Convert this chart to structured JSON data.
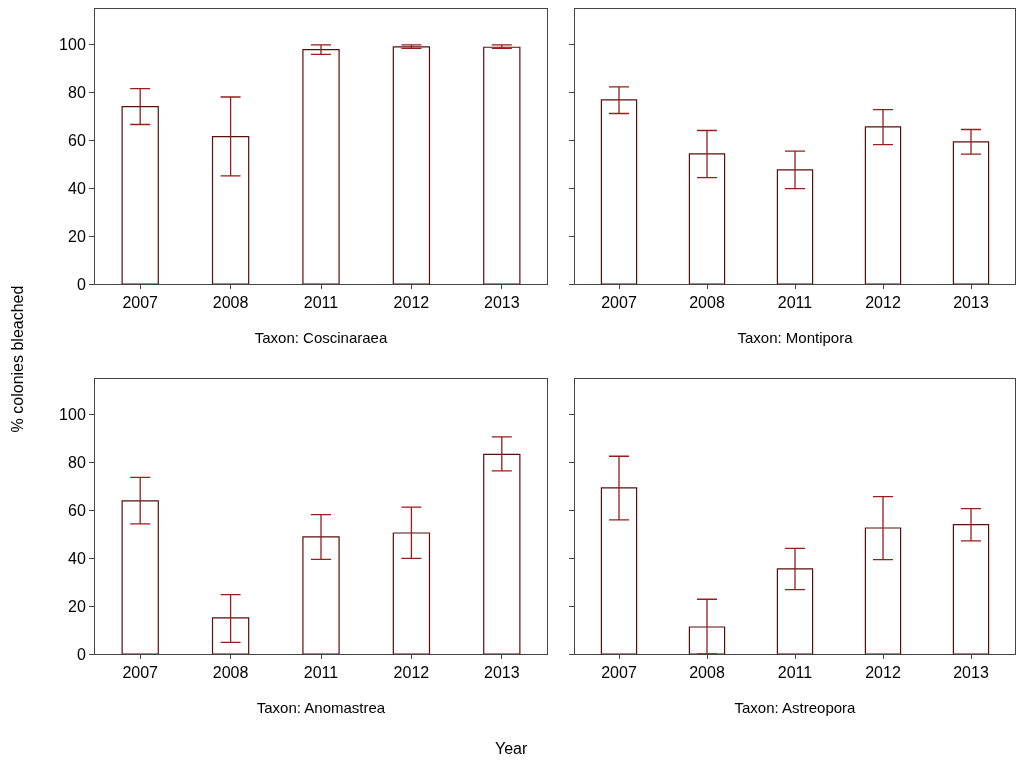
{
  "chart_data": [
    {
      "type": "bar",
      "title": "Taxon: Coscinaraea",
      "ylabel": "% colonies bleached",
      "categories": [
        "2007",
        "2008",
        "2011",
        "2012",
        "2013"
      ],
      "values": [
        74.2,
        61.6,
        98,
        99.2,
        99
      ],
      "errors": [
        [
          66.7,
          81.7
        ],
        [
          45.2,
          78.2
        ],
        [
          96,
          100
        ],
        [
          98.5,
          100
        ],
        [
          98.5,
          100
        ]
      ],
      "color": "#ffffff",
      "ylim": [
        0,
        115
      ],
      "yticks": [
        0,
        20,
        40,
        60,
        80,
        100
      ],
      "grid": false
    },
    {
      "type": "bar",
      "title": "Taxon: Montipora",
      "categories": [
        "2007",
        "2008",
        "2011",
        "2012",
        "2013"
      ],
      "values": [
        77,
        54.4,
        47.7,
        65.7,
        59.4
      ],
      "errors": [
        [
          71.3,
          82.4
        ],
        [
          44.5,
          64.2
        ],
        [
          39.9,
          55.6
        ],
        [
          58.3,
          72.9
        ],
        [
          54.3,
          64.6
        ]
      ],
      "color": "#ffffff",
      "ylim": [
        0,
        115
      ],
      "yticks": [
        0,
        20,
        40,
        60,
        80,
        100
      ],
      "grid": false,
      "tick_labels": "x"
    },
    {
      "type": "bar",
      "title": "Taxon: Anomastrea",
      "xlabel": "Year",
      "categories": [
        "2007",
        "2008",
        "2011",
        "2012",
        "2013"
      ],
      "values": [
        64,
        15.1,
        49,
        50.6,
        83.5
      ],
      "errors": [
        [
          54.4,
          73.9
        ],
        [
          4.9,
          24.8
        ],
        [
          39.6,
          58.3
        ],
        [
          40,
          61.4
        ],
        [
          76.6,
          90.8
        ]
      ],
      "color": "#ffffff",
      "ylim": [
        0,
        115
      ],
      "yticks": [
        0,
        20,
        40,
        60,
        80,
        100
      ],
      "grid": false
    },
    {
      "type": "bar",
      "title": "Taxon: Astreopora",
      "categories": [
        "2007",
        "2008",
        "2011",
        "2012",
        "2013"
      ],
      "values": [
        69.5,
        11.3,
        35.6,
        52.7,
        54.1
      ],
      "errors": [
        [
          56.1,
          82.7
        ],
        [
          0,
          22.9
        ],
        [
          26.9,
          44.2
        ],
        [
          39.5,
          65.8
        ],
        [
          47.3,
          60.8
        ]
      ],
      "color": "#ffffff",
      "ylim": [
        0,
        115
      ],
      "yticks": [
        0,
        20,
        40,
        60,
        80,
        100
      ],
      "grid": false,
      "tick_labels": "x"
    }
  ]
}
